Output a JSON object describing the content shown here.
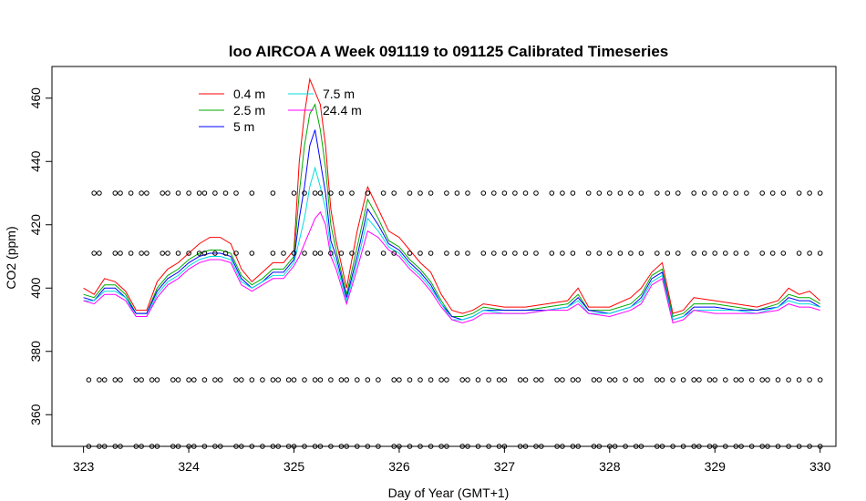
{
  "chart_data": {
    "type": "line",
    "title": "loo AIRCOA A  Week 091119 to 091125  Calibrated Timeseries",
    "xlabel": "Day of Year (GMT+1)",
    "ylabel": "CO2 (ppm)",
    "xlim": [
      322.7,
      330.15
    ],
    "ylim": [
      350,
      470
    ],
    "xticks": [
      323,
      324,
      325,
      326,
      327,
      328,
      329,
      330
    ],
    "yticks": [
      360,
      380,
      400,
      420,
      440,
      460
    ],
    "legend_position": "top-left",
    "grid": false,
    "series": [
      {
        "name": "0.4 m",
        "color": "#ff0000",
        "x": [
          323.0,
          323.1,
          323.2,
          323.3,
          323.4,
          323.5,
          323.6,
          323.7,
          323.8,
          323.9,
          324.0,
          324.1,
          324.2,
          324.3,
          324.4,
          324.5,
          324.6,
          324.7,
          324.8,
          324.9,
          325.0,
          325.05,
          325.1,
          325.15,
          325.2,
          325.25,
          325.3,
          325.35,
          325.4,
          325.5,
          325.6,
          325.7,
          325.8,
          325.9,
          326.0,
          326.1,
          326.2,
          326.3,
          326.4,
          326.5,
          326.6,
          326.7,
          326.8,
          327.0,
          327.2,
          327.4,
          327.6,
          327.7,
          327.8,
          328.0,
          328.2,
          328.3,
          328.4,
          328.5,
          328.6,
          328.7,
          328.8,
          329.0,
          329.2,
          329.4,
          329.6,
          329.7,
          329.8,
          329.9,
          330.0
        ],
        "y": [
          400,
          398,
          403,
          402,
          399,
          393,
          393,
          402,
          406,
          408,
          411,
          414,
          416,
          416,
          414,
          406,
          402,
          405,
          408,
          408,
          412,
          440,
          455,
          466,
          462,
          458,
          445,
          425,
          415,
          400,
          418,
          432,
          425,
          418,
          416,
          412,
          408,
          405,
          398,
          393,
          392,
          393,
          395,
          394,
          394,
          395,
          396,
          400,
          394,
          394,
          397,
          400,
          405,
          408,
          392,
          393,
          397,
          396,
          395,
          394,
          396,
          400,
          398,
          399,
          396
        ]
      },
      {
        "name": "2.5 m",
        "color": "#00aa00",
        "x": [
          323.0,
          323.1,
          323.2,
          323.3,
          323.4,
          323.5,
          323.6,
          323.7,
          323.8,
          323.9,
          324.0,
          324.1,
          324.2,
          324.3,
          324.4,
          324.5,
          324.6,
          324.7,
          324.8,
          324.9,
          325.0,
          325.05,
          325.1,
          325.15,
          325.2,
          325.25,
          325.3,
          325.35,
          325.4,
          325.5,
          325.6,
          325.7,
          325.8,
          325.9,
          326.0,
          326.1,
          326.2,
          326.3,
          326.4,
          326.5,
          326.6,
          326.7,
          326.8,
          327.0,
          327.2,
          327.4,
          327.6,
          327.7,
          327.8,
          328.0,
          328.2,
          328.3,
          328.4,
          328.5,
          328.6,
          328.7,
          328.8,
          329.0,
          329.2,
          329.4,
          329.6,
          329.7,
          329.8,
          329.9,
          330.0
        ],
        "y": [
          398,
          397,
          401,
          401,
          398,
          392,
          392,
          400,
          404,
          406,
          409,
          411,
          412,
          412,
          411,
          404,
          401,
          403,
          406,
          406,
          410,
          430,
          445,
          455,
          458,
          450,
          438,
          420,
          412,
          398,
          413,
          428,
          422,
          415,
          413,
          409,
          406,
          402,
          396,
          391,
          391,
          392,
          394,
          393,
          393,
          394,
          395,
          398,
          393,
          393,
          395,
          398,
          404,
          406,
          391,
          392,
          395,
          395,
          394,
          393,
          395,
          398,
          397,
          397,
          395
        ]
      },
      {
        "name": "5 m",
        "color": "#0000ff",
        "x": [
          323.0,
          323.1,
          323.2,
          323.3,
          323.4,
          323.5,
          323.6,
          323.7,
          323.8,
          323.9,
          324.0,
          324.1,
          324.2,
          324.3,
          324.4,
          324.5,
          324.6,
          324.7,
          324.8,
          324.9,
          325.0,
          325.05,
          325.1,
          325.15,
          325.2,
          325.25,
          325.3,
          325.35,
          325.4,
          325.5,
          325.6,
          325.7,
          325.8,
          325.9,
          326.0,
          326.1,
          326.2,
          326.3,
          326.4,
          326.5,
          326.6,
          326.7,
          326.8,
          327.0,
          327.2,
          327.4,
          327.6,
          327.7,
          327.8,
          328.0,
          328.2,
          328.3,
          328.4,
          328.5,
          328.6,
          328.7,
          328.8,
          329.0,
          329.2,
          329.4,
          329.6,
          329.7,
          329.8,
          329.9,
          330.0
        ],
        "y": [
          397,
          396,
          400,
          400,
          397,
          392,
          392,
          399,
          403,
          405,
          408,
          410,
          411,
          411,
          410,
          403,
          400,
          402,
          405,
          405,
          409,
          422,
          432,
          445,
          450,
          440,
          430,
          415,
          410,
          397,
          410,
          425,
          420,
          414,
          412,
          408,
          405,
          401,
          395,
          391,
          390,
          391,
          393,
          393,
          393,
          393,
          394,
          397,
          393,
          392,
          394,
          397,
          403,
          405,
          390,
          391,
          394,
          394,
          393,
          393,
          394,
          397,
          396,
          396,
          394
        ]
      },
      {
        "name": "7.5 m",
        "color": "#00dddd",
        "x": [
          323.0,
          323.1,
          323.2,
          323.3,
          323.4,
          323.5,
          323.6,
          323.7,
          323.8,
          323.9,
          324.0,
          324.1,
          324.2,
          324.3,
          324.4,
          324.5,
          324.6,
          324.7,
          324.8,
          324.9,
          325.0,
          325.05,
          325.1,
          325.15,
          325.2,
          325.25,
          325.3,
          325.35,
          325.4,
          325.5,
          325.6,
          325.7,
          325.8,
          325.9,
          326.0,
          326.1,
          326.2,
          326.3,
          326.4,
          326.5,
          326.6,
          326.7,
          326.8,
          327.0,
          327.2,
          327.4,
          327.6,
          327.7,
          327.8,
          328.0,
          328.2,
          328.3,
          328.4,
          328.5,
          328.6,
          328.7,
          328.8,
          329.0,
          329.2,
          329.4,
          329.6,
          329.7,
          329.8,
          329.9,
          330.0
        ],
        "y": [
          396,
          396,
          399,
          399,
          397,
          391,
          391,
          398,
          402,
          404,
          407,
          409,
          410,
          410,
          409,
          402,
          400,
          402,
          404,
          404,
          408,
          415,
          422,
          432,
          438,
          432,
          425,
          412,
          408,
          396,
          408,
          422,
          418,
          413,
          411,
          407,
          404,
          400,
          395,
          390,
          390,
          391,
          393,
          392,
          392,
          393,
          394,
          396,
          392,
          392,
          394,
          396,
          402,
          404,
          390,
          391,
          393,
          393,
          393,
          392,
          394,
          396,
          395,
          395,
          394
        ]
      },
      {
        "name": "24.4 m",
        "color": "#ff00ff",
        "x": [
          323.0,
          323.1,
          323.2,
          323.3,
          323.4,
          323.5,
          323.6,
          323.7,
          323.8,
          323.9,
          324.0,
          324.1,
          324.2,
          324.3,
          324.4,
          324.5,
          324.6,
          324.7,
          324.8,
          324.9,
          325.0,
          325.05,
          325.1,
          325.15,
          325.2,
          325.25,
          325.3,
          325.35,
          325.4,
          325.5,
          325.6,
          325.7,
          325.8,
          325.9,
          326.0,
          326.1,
          326.2,
          326.3,
          326.4,
          326.5,
          326.6,
          326.7,
          326.8,
          327.0,
          327.2,
          327.4,
          327.6,
          327.7,
          327.8,
          328.0,
          328.2,
          328.3,
          328.4,
          328.5,
          328.6,
          328.7,
          328.8,
          329.0,
          329.2,
          329.4,
          329.6,
          329.7,
          329.8,
          329.9,
          330.0
        ],
        "y": [
          396,
          395,
          398,
          398,
          396,
          391,
          391,
          397,
          401,
          403,
          406,
          408,
          409,
          409,
          408,
          401,
          399,
          401,
          403,
          403,
          407,
          410,
          414,
          418,
          422,
          424,
          420,
          410,
          406,
          395,
          406,
          418,
          416,
          412,
          410,
          406,
          403,
          399,
          394,
          390,
          389,
          390,
          392,
          392,
          392,
          393,
          393,
          395,
          392,
          391,
          393,
          395,
          401,
          403,
          389,
          390,
          393,
          392,
          392,
          392,
          393,
          395,
          394,
          394,
          393
        ]
      }
    ],
    "marker_rows": [
      {
        "y": 430,
        "x": [
          323.1,
          323.15,
          323.3,
          323.35,
          323.45,
          323.55,
          323.6,
          323.75,
          323.8,
          323.9,
          324.0,
          324.1,
          324.15,
          324.25,
          324.35,
          324.45,
          324.6,
          324.8,
          325.0,
          325.1,
          325.2,
          325.25,
          325.35,
          325.45,
          325.55,
          325.7,
          325.85,
          325.95,
          326.1,
          326.2,
          326.3,
          326.45,
          326.55,
          326.65,
          326.8,
          326.9,
          327.0,
          327.1,
          327.2,
          327.3,
          327.45,
          327.55,
          327.65,
          327.8,
          327.9,
          328.0,
          328.1,
          328.2,
          328.3,
          328.45,
          328.55,
          328.65,
          328.8,
          328.9,
          329.0,
          329.1,
          329.2,
          329.3,
          329.45,
          329.55,
          329.65,
          329.8,
          329.9,
          330.0
        ]
      },
      {
        "y": 411,
        "x": [
          323.1,
          323.15,
          323.3,
          323.35,
          323.45,
          323.55,
          323.6,
          323.75,
          323.8,
          323.9,
          324.0,
          324.1,
          324.15,
          324.25,
          324.35,
          324.45,
          324.6,
          324.8,
          324.9,
          325.0,
          325.1,
          325.2,
          325.25,
          325.35,
          325.45,
          325.55,
          325.7,
          325.85,
          325.95,
          326.1,
          326.2,
          326.3,
          326.45,
          326.55,
          326.65,
          326.8,
          326.9,
          327.0,
          327.1,
          327.2,
          327.3,
          327.45,
          327.55,
          327.65,
          327.8,
          327.9,
          328.0,
          328.1,
          328.2,
          328.3,
          328.45,
          328.55,
          328.65,
          328.8,
          328.9,
          329.0,
          329.1,
          329.2,
          329.3,
          329.45,
          329.55,
          329.65,
          329.8,
          329.9,
          330.0
        ]
      },
      {
        "y": 371,
        "x": [
          323.05,
          323.15,
          323.2,
          323.3,
          323.35,
          323.5,
          323.55,
          323.65,
          323.7,
          323.85,
          323.9,
          324.0,
          324.05,
          324.15,
          324.25,
          324.3,
          324.45,
          324.5,
          324.6,
          324.7,
          324.8,
          324.85,
          324.95,
          325.0,
          325.1,
          325.2,
          325.25,
          325.35,
          325.45,
          325.5,
          325.6,
          325.7,
          325.8,
          325.95,
          326.0,
          326.1,
          326.2,
          326.3,
          326.4,
          326.45,
          326.6,
          326.65,
          326.75,
          326.85,
          326.95,
          327.0,
          327.15,
          327.2,
          327.3,
          327.35,
          327.5,
          327.55,
          327.65,
          327.7,
          327.85,
          327.9,
          328.0,
          328.05,
          328.15,
          328.25,
          328.3,
          328.45,
          328.5,
          328.6,
          328.7,
          328.8,
          328.85,
          328.95,
          329.0,
          329.1,
          329.2,
          329.25,
          329.35,
          329.45,
          329.5,
          329.6,
          329.7,
          329.8,
          329.9,
          330.0
        ]
      },
      {
        "y": 350,
        "x": [
          323.05,
          323.15,
          323.2,
          323.3,
          323.35,
          323.5,
          323.55,
          323.65,
          323.7,
          323.85,
          323.9,
          324.0,
          324.05,
          324.15,
          324.25,
          324.3,
          324.45,
          324.5,
          324.6,
          324.7,
          324.8,
          324.85,
          324.95,
          325.0,
          325.1,
          325.2,
          325.25,
          325.35,
          325.45,
          325.5,
          325.6,
          325.7,
          325.8,
          325.95,
          326.0,
          326.1,
          326.2,
          326.3,
          326.4,
          326.45,
          326.6,
          326.65,
          326.75,
          326.85,
          326.95,
          327.0,
          327.15,
          327.2,
          327.3,
          327.35,
          327.5,
          327.55,
          327.65,
          327.7,
          327.85,
          327.9,
          328.0,
          328.05,
          328.15,
          328.25,
          328.3,
          328.45,
          328.5,
          328.6,
          328.7,
          328.8,
          328.85,
          328.95,
          329.0,
          329.1,
          329.2,
          329.25,
          329.35,
          329.45,
          329.5,
          329.6,
          329.7,
          329.8,
          329.9,
          330.0
        ]
      }
    ]
  }
}
